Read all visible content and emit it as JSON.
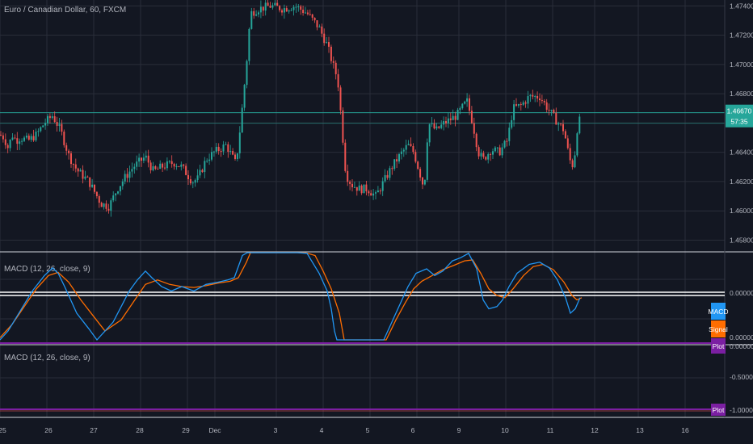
{
  "colors": {
    "background": "#131722",
    "grid": "#2a2e39",
    "up": "#26a69a",
    "down": "#ef5350",
    "macd": "#2196f3",
    "signal": "#ff6d00",
    "plot": "#7b1fa2",
    "price_tag": "#26a69a",
    "text": "#b2b5be"
  },
  "header": {
    "title": "Euro / Canadian Dollar, 60, FXCM"
  },
  "price_panel": {
    "current_price": "1.46670",
    "countdown": "57:35",
    "y_ticks": [
      "1.47400",
      "1.47200",
      "1.47000",
      "1.46800",
      "1.46600",
      "1.46400",
      "1.46200",
      "1.46000",
      "1.45800"
    ]
  },
  "macd_panel": {
    "title": "MACD (12, 26, close, 9)",
    "tick_label": "0.00000",
    "tick_label_lower": "0.00000",
    "macd_tag": "MACD",
    "signal_tag": "Signal",
    "plot_tag": "Plot",
    "plot_value": "0.00000"
  },
  "macd_panel2": {
    "title": "MACD (12, 26, close, 9)",
    "y_ticks": [
      "-0.50000"
    ],
    "plot_tag": "Plot",
    "plot_value": "-1.00000"
  },
  "time_axis": {
    "labels": [
      "25",
      "26",
      "27",
      "28",
      "29",
      "Dec",
      "3",
      "4",
      "5",
      "6",
      "9",
      "10",
      "11",
      "12",
      "13",
      "16"
    ]
  },
  "chart_data": {
    "type": "candlestick",
    "symbol": "Euro / Canadian Dollar",
    "interval": "60",
    "source": "FXCM",
    "x_labels": [
      "25",
      "26",
      "27",
      "28",
      "29",
      "Dec",
      "3",
      "4",
      "5",
      "6",
      "9",
      "10",
      "11",
      "12",
      "13",
      "16"
    ],
    "ylim": [
      1.4572,
      1.4744
    ],
    "y_ticks": [
      1.474,
      1.472,
      1.47,
      1.468,
      1.466,
      1.464,
      1.462,
      1.46,
      1.458
    ],
    "last_price": 1.4667,
    "price_path": [
      [
        0,
        1.4652
      ],
      [
        5,
        1.465
      ],
      [
        10,
        1.4643
      ],
      [
        15,
        1.4652
      ],
      [
        20,
        1.4648
      ],
      [
        25,
        1.465
      ],
      [
        35,
        1.4648
      ],
      [
        45,
        1.4652
      ],
      [
        55,
        1.466
      ],
      [
        65,
        1.4665
      ],
      [
        75,
        1.4655
      ],
      [
        85,
        1.4638
      ],
      [
        95,
        1.4628
      ],
      [
        110,
        1.462
      ],
      [
        125,
        1.4605
      ],
      [
        135,
        1.4603
      ],
      [
        145,
        1.4615
      ],
      [
        155,
        1.4623
      ],
      [
        165,
        1.463
      ],
      [
        180,
        1.4637
      ],
      [
        190,
        1.4627
      ],
      [
        200,
        1.463
      ],
      [
        215,
        1.4633
      ],
      [
        225,
        1.463
      ],
      [
        238,
        1.462
      ],
      [
        245,
        1.4622
      ],
      [
        255,
        1.4635
      ],
      [
        265,
        1.464
      ],
      [
        280,
        1.4645
      ],
      [
        292,
        1.4632
      ],
      [
        298,
        1.466
      ],
      [
        305,
        1.47
      ],
      [
        310,
        1.4735
      ],
      [
        320,
        1.4738
      ],
      [
        335,
        1.474
      ],
      [
        350,
        1.4738
      ],
      [
        365,
        1.474
      ],
      [
        380,
        1.4735
      ],
      [
        395,
        1.4725
      ],
      [
        405,
        1.4713
      ],
      [
        412,
        1.47
      ],
      [
        418,
        1.469
      ],
      [
        422,
        1.4665
      ],
      [
        428,
        1.4625
      ],
      [
        435,
        1.4618
      ],
      [
        445,
        1.4615
      ],
      [
        455,
        1.4615
      ],
      [
        465,
        1.461
      ],
      [
        475,
        1.462
      ],
      [
        485,
        1.463
      ],
      [
        495,
        1.4638
      ],
      [
        505,
        1.4645
      ],
      [
        512,
        1.464
      ],
      [
        520,
        1.4625
      ],
      [
        525,
        1.4615
      ],
      [
        530,
        1.466
      ],
      [
        540,
        1.4655
      ],
      [
        550,
        1.466
      ],
      [
        565,
        1.4665
      ],
      [
        578,
        1.4675
      ],
      [
        585,
        1.466
      ],
      [
        592,
        1.464
      ],
      [
        598,
        1.4635
      ],
      [
        608,
        1.4642
      ],
      [
        618,
        1.464
      ],
      [
        628,
        1.4648
      ],
      [
        635,
        1.467
      ],
      [
        645,
        1.4672
      ],
      [
        655,
        1.4678
      ],
      [
        668,
        1.4678
      ],
      [
        678,
        1.467
      ],
      [
        688,
        1.4662
      ],
      [
        698,
        1.4655
      ],
      [
        705,
        1.4635
      ],
      [
        710,
        1.463
      ],
      [
        714,
        1.4655
      ],
      [
        720,
        1.4667
      ]
    ],
    "macd_path": [
      [
        0,
        -1.0
      ],
      [
        10,
        -0.8
      ],
      [
        25,
        -0.35
      ],
      [
        40,
        0.1
      ],
      [
        55,
        0.45
      ],
      [
        65,
        0.62
      ],
      [
        72,
        0.5
      ],
      [
        80,
        0.2
      ],
      [
        95,
        -0.4
      ],
      [
        110,
        -0.75
      ],
      [
        120,
        -1.0
      ],
      [
        140,
        -0.6
      ],
      [
        150,
        -0.25
      ],
      [
        160,
        0.1
      ],
      [
        170,
        0.35
      ],
      [
        180,
        0.55
      ],
      [
        188,
        0.4
      ],
      [
        200,
        0.2
      ],
      [
        212,
        0.1
      ],
      [
        225,
        0.2
      ],
      [
        240,
        0.1
      ],
      [
        255,
        0.25
      ],
      [
        270,
        0.3
      ],
      [
        282,
        0.35
      ],
      [
        290,
        0.4
      ],
      [
        300,
        0.9
      ],
      [
        306,
        1.3
      ],
      [
        368,
        1.3
      ],
      [
        380,
        0.95
      ],
      [
        395,
        0.5
      ],
      [
        405,
        0.1
      ],
      [
        410,
        -0.3
      ],
      [
        414,
        -0.8
      ],
      [
        417,
        -1.0
      ],
      [
        475,
        -1.0
      ],
      [
        485,
        -0.6
      ],
      [
        495,
        -0.2
      ],
      [
        505,
        0.2
      ],
      [
        515,
        0.5
      ],
      [
        528,
        0.6
      ],
      [
        538,
        0.45
      ],
      [
        548,
        0.55
      ],
      [
        560,
        0.78
      ],
      [
        570,
        0.85
      ],
      [
        580,
        0.95
      ],
      [
        590,
        0.6
      ],
      [
        598,
        -0.1
      ],
      [
        605,
        -0.3
      ],
      [
        615,
        -0.25
      ],
      [
        622,
        -0.1
      ],
      [
        630,
        0.2
      ],
      [
        640,
        0.5
      ],
      [
        655,
        0.7
      ],
      [
        668,
        0.75
      ],
      [
        680,
        0.62
      ],
      [
        690,
        0.35
      ],
      [
        700,
        -0.05
      ],
      [
        706,
        -0.4
      ],
      [
        712,
        -0.3
      ],
      [
        718,
        -0.05
      ]
    ],
    "signal_path": [
      [
        0,
        -0.95
      ],
      [
        15,
        -0.65
      ],
      [
        30,
        -0.25
      ],
      [
        45,
        0.15
      ],
      [
        60,
        0.45
      ],
      [
        72,
        0.52
      ],
      [
        85,
        0.3
      ],
      [
        100,
        -0.1
      ],
      [
        115,
        -0.45
      ],
      [
        130,
        -0.8
      ],
      [
        150,
        -0.55
      ],
      [
        165,
        -0.15
      ],
      [
        180,
        0.25
      ],
      [
        195,
        0.35
      ],
      [
        210,
        0.25
      ],
      [
        225,
        0.2
      ],
      [
        240,
        0.18
      ],
      [
        255,
        0.22
      ],
      [
        270,
        0.28
      ],
      [
        285,
        0.32
      ],
      [
        295,
        0.4
      ],
      [
        305,
        0.75
      ],
      [
        310,
        1.2
      ],
      [
        378,
        1.2
      ],
      [
        390,
        0.9
      ],
      [
        400,
        0.55
      ],
      [
        410,
        0.15
      ],
      [
        420,
        -0.4
      ],
      [
        426,
        -1.0
      ],
      [
        478,
        -1.0
      ],
      [
        490,
        -0.55
      ],
      [
        502,
        -0.15
      ],
      [
        512,
        0.15
      ],
      [
        522,
        0.32
      ],
      [
        535,
        0.45
      ],
      [
        548,
        0.58
      ],
      [
        562,
        0.68
      ],
      [
        575,
        0.78
      ],
      [
        585,
        0.8
      ],
      [
        595,
        0.5
      ],
      [
        605,
        0.15
      ],
      [
        615,
        0.0
      ],
      [
        625,
        -0.05
      ],
      [
        635,
        0.15
      ],
      [
        648,
        0.45
      ],
      [
        660,
        0.65
      ],
      [
        672,
        0.7
      ],
      [
        685,
        0.58
      ],
      [
        698,
        0.3
      ],
      [
        708,
        0.0
      ],
      [
        714,
        -0.1
      ],
      [
        720,
        -0.05
      ]
    ]
  }
}
